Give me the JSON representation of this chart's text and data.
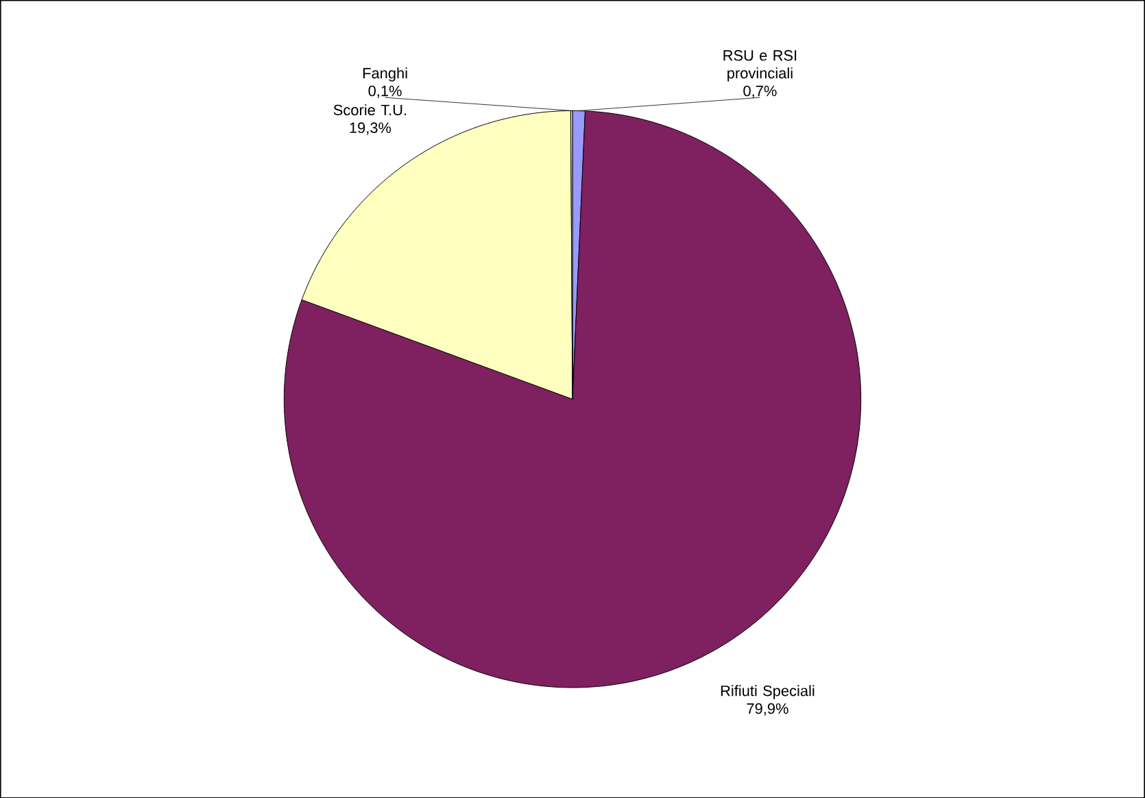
{
  "chart_data": {
    "type": "pie",
    "categories": [
      "RSU e RSI provinciali",
      "Rifiuti Speciali",
      "Scorie T.U.",
      "Fanghi"
    ],
    "values": [
      0.7,
      79.9,
      19.3,
      0.1
    ],
    "colors": [
      "#9999ff",
      "#7f2060",
      "#ffffc0",
      "#cce8ff"
    ],
    "value_labels": [
      "0,7%",
      "79,9%",
      "19,3%",
      "0,1%"
    ]
  }
}
